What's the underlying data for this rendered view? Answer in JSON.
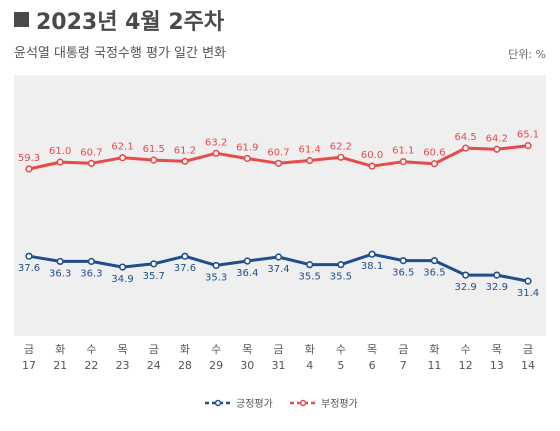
{
  "header": {
    "title": "2023년 4월 2주차",
    "subtitle": "윤석열 대통령 국정수행 평가 일간 변화",
    "unit": "단위: %"
  },
  "colors": {
    "positive": "#1f4e8c",
    "negative": "#e84a4a",
    "background": "#efefef"
  },
  "chart_data": {
    "type": "line",
    "title": "윤석열 대통령 국정수행 평가 일간 변화",
    "x_weekday": [
      "금",
      "화",
      "수",
      "목",
      "금",
      "화",
      "수",
      "목",
      "금",
      "화",
      "수",
      "목",
      "금",
      "화",
      "수",
      "목",
      "금"
    ],
    "x_day": [
      "17",
      "21",
      "22",
      "23",
      "24",
      "28",
      "29",
      "30",
      "31",
      "4",
      "5",
      "6",
      "7",
      "11",
      "12",
      "13",
      "14"
    ],
    "series": [
      {
        "name": "긍정평가",
        "values": [
          37.6,
          36.3,
          36.3,
          34.9,
          35.7,
          37.6,
          35.3,
          36.4,
          37.4,
          35.5,
          35.5,
          38.1,
          36.5,
          36.5,
          32.9,
          32.9,
          31.4
        ]
      },
      {
        "name": "부정평가",
        "values": [
          59.3,
          61.0,
          60.7,
          62.1,
          61.5,
          61.2,
          63.2,
          61.9,
          60.7,
          61.4,
          62.2,
          60.0,
          61.1,
          60.6,
          64.5,
          64.2,
          65.1
        ]
      }
    ],
    "legend_position": "bottom"
  }
}
